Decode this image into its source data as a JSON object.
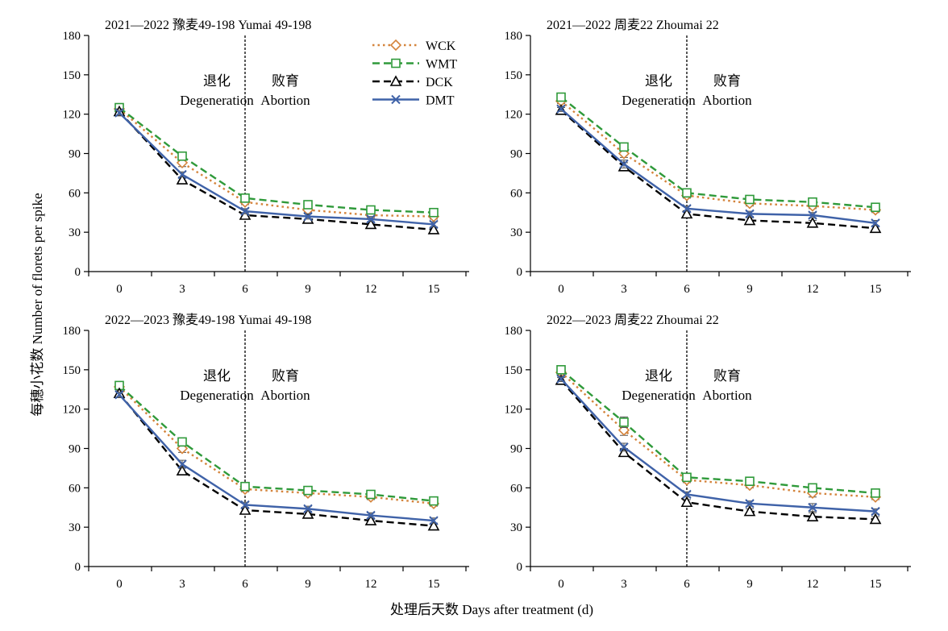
{
  "figure": {
    "ylabel": "每穗小花数 Number of  florets per spike",
    "xlabel": "处理后天数 Days after treatment (d)"
  },
  "legend": [
    {
      "name": "WCK",
      "color": "#d4843c",
      "dash": "dot",
      "marker": "diamond"
    },
    {
      "name": "WMT",
      "color": "#2f9a3a",
      "dash": "dash",
      "marker": "square"
    },
    {
      "name": "DCK",
      "color": "#000000",
      "dash": "dash",
      "marker": "triangle"
    },
    {
      "name": "DMT",
      "color": "#3f62a8",
      "dash": "solid",
      "marker": "x"
    }
  ],
  "chart_data": [
    {
      "type": "line",
      "title": "2021—2022  豫麦49-198 Yumai 49-198",
      "phase_labels": {
        "left": [
          "退化",
          "Degeneration"
        ],
        "right": [
          "败育",
          "Abortion"
        ],
        "divider_x": 6
      },
      "x": [
        0,
        3,
        6,
        9,
        12,
        15
      ],
      "xticks": [
        "0",
        "3",
        "6",
        "9",
        "12",
        "15"
      ],
      "ylim": [
        0,
        180
      ],
      "yticks": [
        "0",
        "30",
        "60",
        "90",
        "120",
        "150",
        "180"
      ],
      "legend_position": "top-right",
      "series": [
        {
          "name": "WCK",
          "values": [
            124,
            83,
            53,
            47,
            43,
            42
          ],
          "err": [
            2,
            3,
            2,
            2,
            2,
            2
          ]
        },
        {
          "name": "WMT",
          "values": [
            125,
            88,
            56,
            51,
            47,
            45
          ],
          "err": [
            2,
            3,
            2,
            2,
            2,
            2
          ]
        },
        {
          "name": "DCK",
          "values": [
            122,
            70,
            43,
            40,
            36,
            32
          ],
          "err": [
            2,
            2,
            2,
            2,
            2,
            2
          ]
        },
        {
          "name": "DMT",
          "values": [
            121,
            74,
            46,
            42,
            40,
            36
          ],
          "err": [
            2,
            2,
            2,
            2,
            2,
            2
          ]
        }
      ]
    },
    {
      "type": "line",
      "title": "2021—2022  周麦22 Zhoumai 22",
      "phase_labels": {
        "left": [
          "退化",
          "Degeneration"
        ],
        "right": [
          "败育",
          "Abortion"
        ],
        "divider_x": 6
      },
      "x": [
        0,
        3,
        6,
        9,
        12,
        15
      ],
      "xticks": [
        "0",
        "3",
        "6",
        "9",
        "12",
        "15"
      ],
      "ylim": [
        0,
        180
      ],
      "yticks": [
        "0",
        "30",
        "60",
        "90",
        "120",
        "150",
        "180"
      ],
      "series": [
        {
          "name": "WCK",
          "values": [
            130,
            90,
            58,
            52,
            50,
            47
          ],
          "err": [
            2,
            3,
            2,
            2,
            2,
            2
          ]
        },
        {
          "name": "WMT",
          "values": [
            133,
            95,
            60,
            55,
            53,
            49
          ],
          "err": [
            2,
            3,
            2,
            2,
            2,
            2
          ]
        },
        {
          "name": "DCK",
          "values": [
            123,
            80,
            44,
            39,
            37,
            33
          ],
          "err": [
            2,
            3,
            2,
            2,
            2,
            2
          ]
        },
        {
          "name": "DMT",
          "values": [
            124,
            82,
            48,
            44,
            43,
            37
          ],
          "err": [
            2,
            3,
            2,
            2,
            2,
            2
          ]
        }
      ]
    },
    {
      "type": "line",
      "title": "2022—2023  豫麦49-198 Yumai 49-198",
      "phase_labels": {
        "left": [
          "退化",
          "Degeneration"
        ],
        "right": [
          "败育",
          "Abortion"
        ],
        "divider_x": 6
      },
      "x": [
        0,
        3,
        6,
        9,
        12,
        15
      ],
      "xticks": [
        "0",
        "3",
        "6",
        "9",
        "12",
        "15"
      ],
      "ylim": [
        0,
        180
      ],
      "yticks": [
        "0",
        "30",
        "60",
        "90",
        "120",
        "150",
        "180"
      ],
      "series": [
        {
          "name": "WCK",
          "values": [
            137,
            90,
            59,
            56,
            53,
            48
          ],
          "err": [
            2,
            3,
            2,
            2,
            2,
            2
          ]
        },
        {
          "name": "WMT",
          "values": [
            138,
            95,
            61,
            58,
            55,
            50
          ],
          "err": [
            2,
            3,
            2,
            2,
            2,
            2
          ]
        },
        {
          "name": "DCK",
          "values": [
            132,
            73,
            43,
            40,
            35,
            31
          ],
          "err": [
            2,
            2,
            2,
            2,
            2,
            2
          ]
        },
        {
          "name": "DMT",
          "values": [
            131,
            78,
            47,
            44,
            39,
            35
          ],
          "err": [
            2,
            3,
            2,
            2,
            2,
            2
          ]
        }
      ]
    },
    {
      "type": "line",
      "title": "2022—2023  周麦22 Zhoumai 22",
      "phase_labels": {
        "left": [
          "退化",
          "Degeneration"
        ],
        "right": [
          "败育",
          "Abortion"
        ],
        "divider_x": 6
      },
      "x": [
        0,
        3,
        6,
        9,
        12,
        15
      ],
      "xticks": [
        "0",
        "3",
        "6",
        "9",
        "12",
        "15"
      ],
      "ylim": [
        0,
        180
      ],
      "yticks": [
        "0",
        "30",
        "60",
        "90",
        "120",
        "150",
        "180"
      ],
      "series": [
        {
          "name": "WCK",
          "values": [
            148,
            104,
            66,
            62,
            56,
            53
          ],
          "err": [
            2,
            4,
            2,
            2,
            3,
            2
          ]
        },
        {
          "name": "WMT",
          "values": [
            150,
            110,
            68,
            65,
            60,
            56
          ],
          "err": [
            2,
            4,
            2,
            2,
            3,
            2
          ]
        },
        {
          "name": "DCK",
          "values": [
            142,
            87,
            49,
            42,
            38,
            36
          ],
          "err": [
            2,
            3,
            2,
            2,
            3,
            2
          ]
        },
        {
          "name": "DMT",
          "values": [
            143,
            91,
            55,
            48,
            45,
            42
          ],
          "err": [
            2,
            3,
            2,
            2,
            3,
            2
          ]
        }
      ]
    }
  ]
}
